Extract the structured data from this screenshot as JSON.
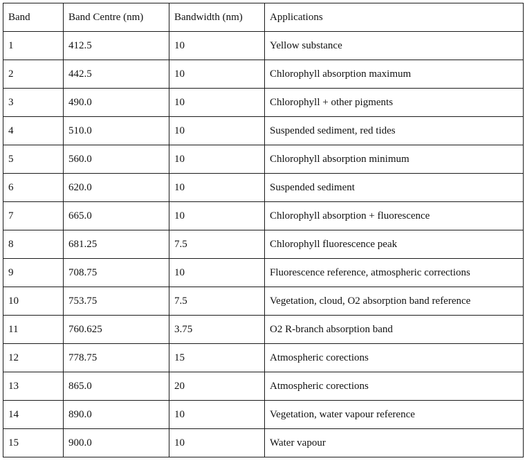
{
  "table": {
    "headers": [
      "Band",
      "Band Centre (nm)",
      "Bandwidth (nm)",
      "Applications"
    ],
    "rows": [
      [
        "1",
        "412.5",
        "10",
        "Yellow substance"
      ],
      [
        "2",
        "442.5",
        "10",
        "Chlorophyll absorption maximum"
      ],
      [
        "3",
        "490.0",
        "10",
        "Chlorophyll + other pigments"
      ],
      [
        "4",
        "510.0",
        "10",
        "Suspended sediment, red tides"
      ],
      [
        "5",
        "560.0",
        "10",
        "Chlorophyll absorption minimum"
      ],
      [
        "6",
        "620.0",
        "10",
        "Suspended sediment"
      ],
      [
        "7",
        "665.0",
        "10",
        "Chlorophyll absorption + fluorescence"
      ],
      [
        "8",
        "681.25",
        "7.5",
        "Chlorophyll fluorescence peak"
      ],
      [
        "9",
        "708.75",
        "10",
        "Fluorescence reference, atmospheric corrections"
      ],
      [
        "10",
        "753.75",
        "7.5",
        "Vegetation, cloud, O2 absorption band reference"
      ],
      [
        "11",
        "760.625",
        "3.75",
        "O2 R-branch absorption band"
      ],
      [
        "12",
        "778.75",
        "15",
        "Atmospheric corections"
      ],
      [
        "13",
        "865.0",
        "20",
        "Atmospheric corections"
      ],
      [
        "14",
        "890.0",
        "10",
        "Vegetation, water vapour reference"
      ],
      [
        "15",
        "900.0",
        "10",
        "Water vapour"
      ]
    ]
  }
}
